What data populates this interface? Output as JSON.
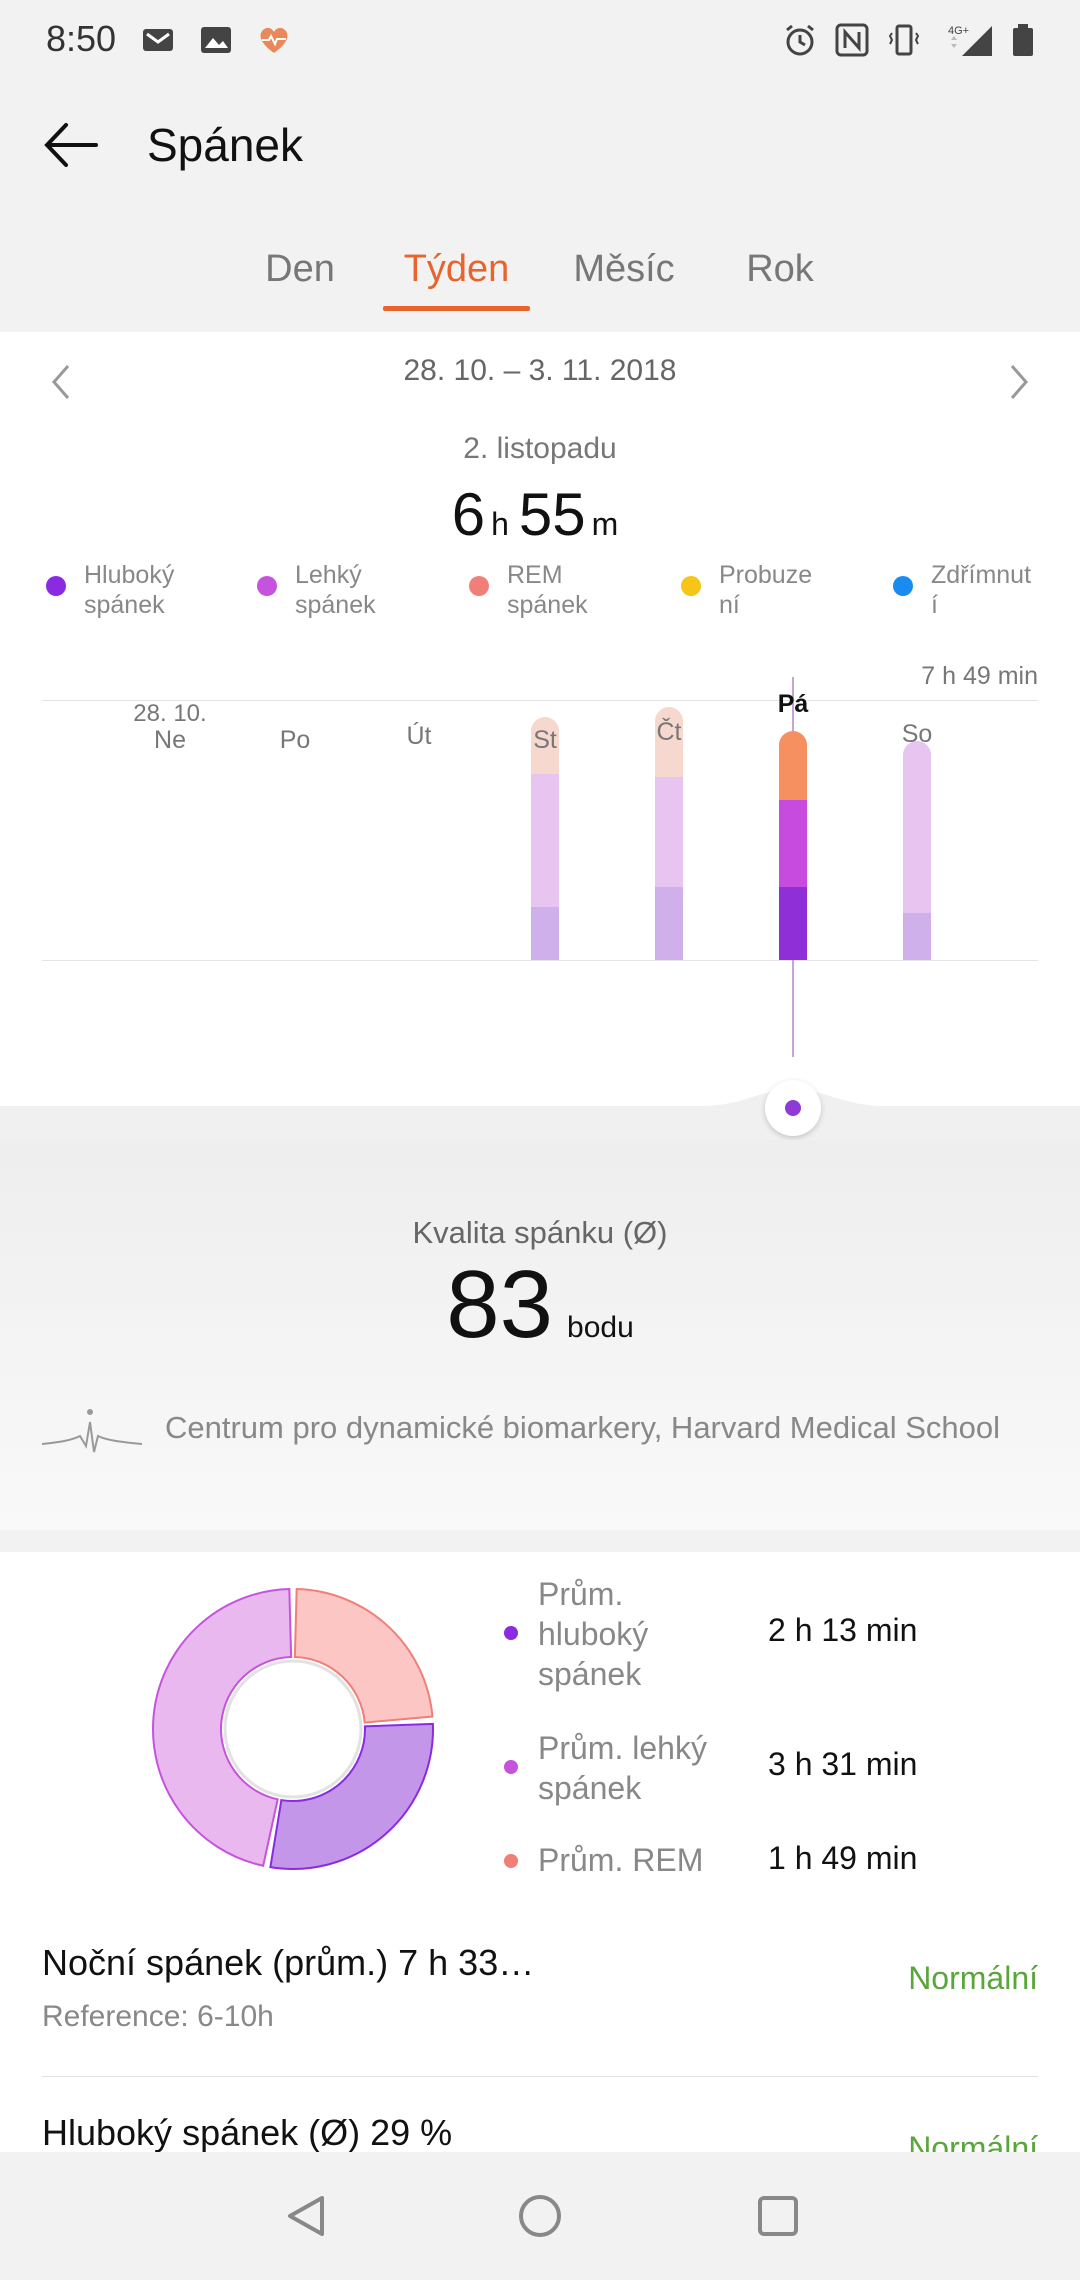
{
  "status_bar": {
    "time": "8:50",
    "left_icons": [
      "mail-icon",
      "image-icon",
      "heart-rate-icon"
    ],
    "right_icons": [
      "alarm-icon",
      "nfc-icon",
      "vibrate-icon",
      "signal-4g-icon",
      "battery-icon"
    ],
    "network": "4G+"
  },
  "app_bar": {
    "title": "Spánek"
  },
  "tabs": [
    {
      "label": "Den",
      "active": false
    },
    {
      "label": "Týden",
      "active": true
    },
    {
      "label": "Měsíc",
      "active": false
    },
    {
      "label": "Rok",
      "active": false
    }
  ],
  "chart_header": {
    "date_range": "28. 10. – 3. 11. 2018",
    "selected_day": "2. listopadu",
    "hours": "6",
    "hours_unit": "h",
    "minutes": "55",
    "minutes_unit": "m"
  },
  "legend": [
    {
      "line1": "Hluboký",
      "line2": "spánek",
      "color": "#8a2be2"
    },
    {
      "line1": "Lehký",
      "line2": "spánek",
      "color": "#c653dd"
    },
    {
      "line1": "REM",
      "line2": "spánek",
      "color": "#f07f78"
    },
    {
      "line1": "Probuze",
      "line2": "ní",
      "color": "#f5c518"
    },
    {
      "line1": "Zdřímnut",
      "line2": "í",
      "color": "#1a8cf0"
    }
  ],
  "chart_data": {
    "type": "bar",
    "stacked": true,
    "max_label": "7 h 49 min",
    "categories": [
      "Ne",
      "Po",
      "Út",
      "St",
      "Čt",
      "Pá",
      "So"
    ],
    "first_date": "28. 10.",
    "selected_index": 5,
    "ylim": [
      0,
      7.82
    ],
    "series": [
      {
        "name": "Hluboký spánek",
        "values": [
          0,
          0,
          0,
          1.6,
          2.2,
          2.2,
          1.4
        ]
      },
      {
        "name": "Lehký spánek",
        "values": [
          0,
          0,
          0,
          4.0,
          3.3,
          2.6,
          5.2
        ]
      },
      {
        "name": "REM spánek",
        "values": [
          0,
          0,
          0,
          1.7,
          2.1,
          2.1,
          0
        ]
      }
    ]
  },
  "quality": {
    "label": "Kvalita spánku (Ø)",
    "value": "83",
    "unit": "bodu",
    "source": "Centrum pro dynamické biomarkery, Harvard Medical School"
  },
  "averages": [
    {
      "label": "Prům. hluboký spánek",
      "value": "2 h 13 min",
      "color": "#8a2be2",
      "share": 29
    },
    {
      "label": "Prům. lehký spánek",
      "value": "3 h 31 min",
      "color": "#c653dd",
      "share": 47
    },
    {
      "label": "Prům. REM",
      "value": "1 h 49 min",
      "color": "#f07f78",
      "share": 24
    }
  ],
  "summaries": [
    {
      "text": "Noční spánek (prům.)  7 h 33…",
      "reference": "Reference: 6-10h",
      "status": "Normální"
    },
    {
      "text": "Hluboký spánek (Ø)  29 %",
      "status": "Normální"
    }
  ],
  "nav_bar": [
    "back-nav-icon",
    "home-nav-icon",
    "recents-nav-icon"
  ]
}
